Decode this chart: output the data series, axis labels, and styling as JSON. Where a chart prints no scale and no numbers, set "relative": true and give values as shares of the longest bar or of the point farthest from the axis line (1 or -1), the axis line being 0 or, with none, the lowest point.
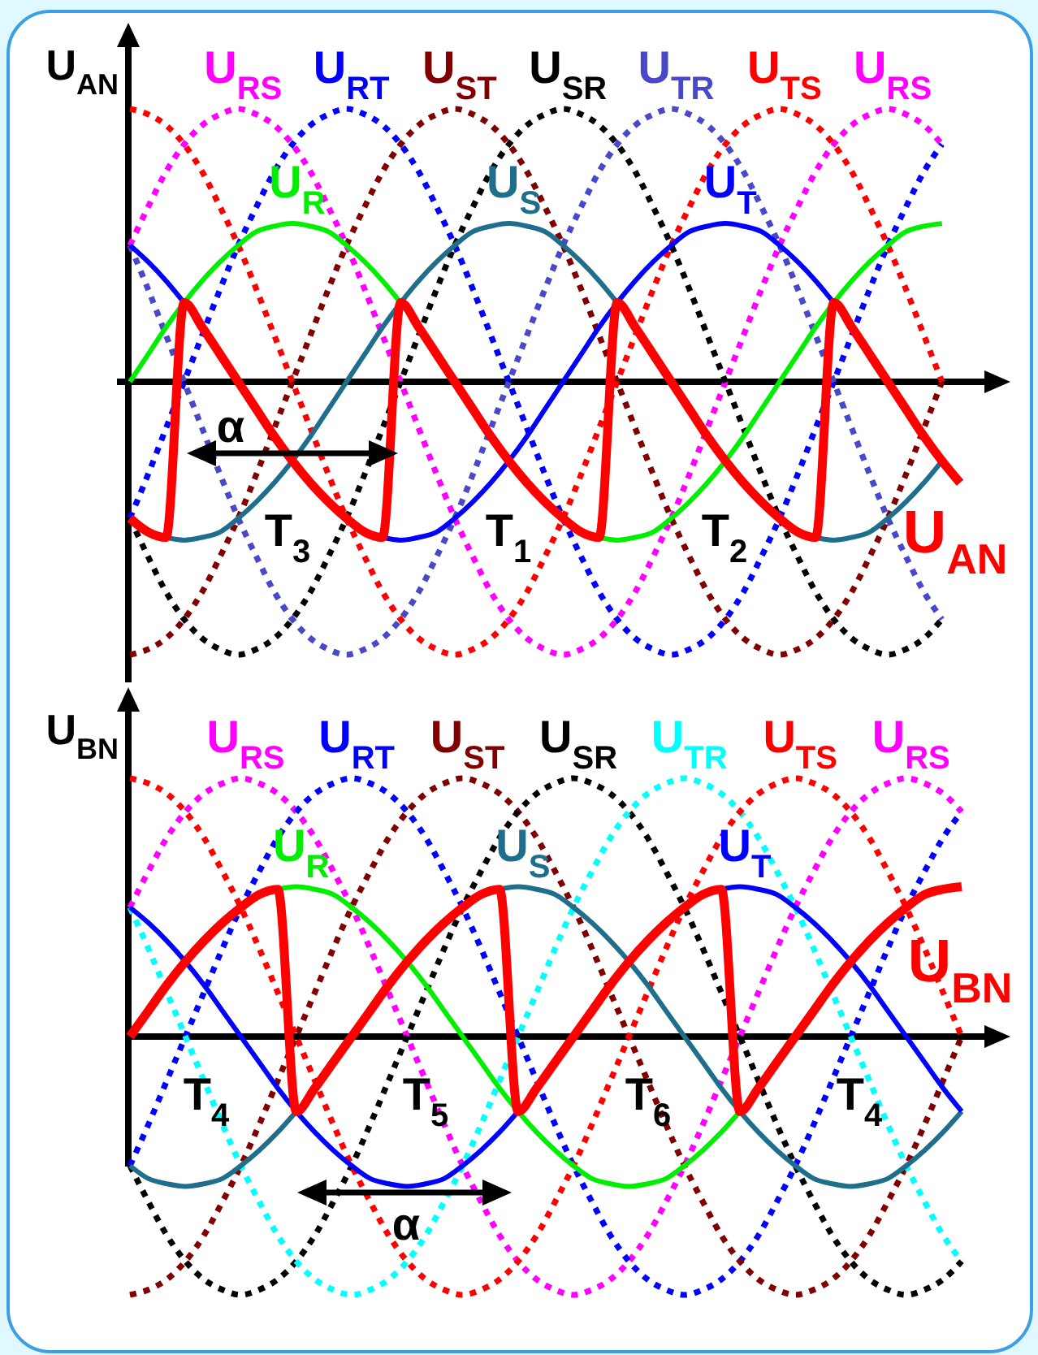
{
  "chart_data": [
    {
      "type": "line",
      "relative": true,
      "ylabel": "U$_{AN}$",
      "categories": [
        null,
        null,
        null,
        null,
        null,
        null,
        null,
        null,
        null,
        null,
        null,
        null,
        null,
        null,
        null,
        null,
        null,
        null,
        null,
        null,
        null,
        null,
        null,
        null,
        null,
        null,
        null,
        null,
        null,
        null,
        null,
        null,
        null,
        null,
        null,
        null,
        null,
        null,
        null,
        null,
        null,
        null,
        null,
        null,
        null,
        null,
        null
      ],
      "series": [
        {
          "name": "U$_{RS}$",
          "color": "#ff00ff",
          "line_style": "dotted",
          "values": [
            0.5,
            0.64,
            0.77,
            0.87,
            0.94,
            0.98,
            1,
            0.98,
            0.94,
            0.87,
            0.77,
            0.64,
            0.5,
            0.34,
            0.17,
            0,
            -0.17,
            -0.34,
            -0.5,
            -0.64,
            -0.77,
            -0.87,
            -0.94,
            -0.98,
            -1,
            -0.98,
            -0.94,
            -0.87,
            -0.77,
            -0.64,
            -0.5,
            -0.34,
            -0.17,
            0,
            0.17,
            0.34,
            0.5,
            0.64,
            0.77,
            0.87,
            0.94,
            0.98,
            1,
            0.98,
            0.94,
            0.87,
            null
          ]
        },
        {
          "name": "U$_{RT}$",
          "color": "#0000ff",
          "line_style": "dotted",
          "values": [
            -0.5,
            -0.34,
            -0.17,
            0,
            0.17,
            0.34,
            0.5,
            0.64,
            0.77,
            0.87,
            0.94,
            0.98,
            1,
            0.98,
            0.94,
            0.87,
            0.77,
            0.64,
            0.5,
            0.34,
            0.17,
            0,
            -0.17,
            -0.34,
            -0.5,
            -0.64,
            -0.77,
            -0.87,
            -0.94,
            -0.98,
            -1,
            -0.98,
            -0.94,
            -0.87,
            -0.77,
            -0.64,
            -0.5,
            -0.34,
            -0.17,
            0,
            0.17,
            0.34,
            0.5,
            0.64,
            0.77,
            0.87,
            null
          ]
        },
        {
          "name": "U$_{ST}$",
          "color": "#800000",
          "line_style": "dotted",
          "values": [
            -1,
            -0.98,
            -0.94,
            -0.87,
            -0.77,
            -0.64,
            -0.5,
            -0.34,
            -0.17,
            0,
            0.17,
            0.34,
            0.5,
            0.64,
            0.77,
            0.87,
            0.94,
            0.98,
            1,
            0.98,
            0.94,
            0.87,
            0.77,
            0.64,
            0.5,
            0.34,
            0.17,
            0,
            -0.17,
            -0.34,
            -0.5,
            -0.64,
            -0.77,
            -0.87,
            -0.94,
            -0.98,
            -1,
            -0.98,
            -0.94,
            -0.87,
            -0.77,
            -0.64,
            -0.5,
            -0.34,
            -0.17,
            0,
            null
          ]
        },
        {
          "name": "U$_{SR}$",
          "color": "#000000",
          "line_style": "dotted",
          "values": [
            -0.5,
            -0.64,
            -0.77,
            -0.87,
            -0.94,
            -0.98,
            -1,
            -0.98,
            -0.94,
            -0.87,
            -0.77,
            -0.64,
            -0.5,
            -0.34,
            -0.17,
            0,
            0.17,
            0.34,
            0.5,
            0.64,
            0.77,
            0.87,
            0.94,
            0.98,
            1,
            0.98,
            0.94,
            0.87,
            0.77,
            0.64,
            0.5,
            0.34,
            0.17,
            0,
            -0.17,
            -0.34,
            -0.5,
            -0.64,
            -0.77,
            -0.87,
            -0.94,
            -0.98,
            -1,
            -0.98,
            -0.94,
            -0.87,
            null
          ]
        },
        {
          "name": "U$_{TR}$",
          "color": "#4848c8",
          "line_style": "dotted",
          "values": [
            0.5,
            0.34,
            0.17,
            0,
            -0.17,
            -0.34,
            -0.5,
            -0.64,
            -0.77,
            -0.87,
            -0.94,
            -0.98,
            -1,
            -0.98,
            -0.94,
            -0.87,
            -0.77,
            -0.64,
            -0.5,
            -0.34,
            -0.17,
            0,
            0.17,
            0.34,
            0.5,
            0.64,
            0.77,
            0.87,
            0.94,
            0.98,
            1,
            0.98,
            0.94,
            0.87,
            0.77,
            0.64,
            0.5,
            0.34,
            0.17,
            0,
            -0.17,
            -0.34,
            -0.5,
            -0.64,
            -0.77,
            -0.87,
            null
          ]
        },
        {
          "name": "U$_{TS}$",
          "color": "#ff0000",
          "line_style": "dotted",
          "values": [
            1,
            0.98,
            0.94,
            0.87,
            0.77,
            0.64,
            0.5,
            0.34,
            0.17,
            0,
            -0.17,
            -0.34,
            -0.5,
            -0.64,
            -0.77,
            -0.87,
            -0.94,
            -0.98,
            -1,
            -0.98,
            -0.94,
            -0.87,
            -0.77,
            -0.64,
            -0.5,
            -0.34,
            -0.17,
            0,
            0.17,
            0.34,
            0.5,
            0.64,
            0.77,
            0.87,
            0.94,
            0.98,
            1,
            0.98,
            0.94,
            0.87,
            0.77,
            0.64,
            0.5,
            0.34,
            0.17,
            0,
            null
          ]
        },
        {
          "name": "U$_{R}$",
          "color": "#00ee00",
          "line_style": "solid",
          "values": [
            0,
            0.1,
            0.2,
            0.29,
            0.37,
            0.44,
            0.5,
            0.55,
            0.57,
            0.58,
            0.57,
            0.55,
            0.5,
            0.44,
            0.37,
            0.29,
            null,
            null,
            null,
            null,
            null,
            null,
            null,
            null,
            null,
            null,
            -0.57,
            -0.58,
            -0.57,
            -0.55,
            -0.5,
            -0.44,
            -0.37,
            -0.29,
            -0.2,
            -0.1,
            0,
            0.1,
            0.2,
            0.29,
            0.37,
            0.44,
            0.5,
            0.55,
            0.57,
            0.58,
            null
          ]
        },
        {
          "name": "U$_{S}$",
          "color": "#1f6e8c",
          "line_style": "solid",
          "values": [
            null,
            null,
            -0.57,
            -0.58,
            -0.57,
            -0.55,
            -0.5,
            -0.44,
            -0.37,
            -0.29,
            -0.2,
            -0.1,
            0,
            0.1,
            0.2,
            0.29,
            0.37,
            0.44,
            0.5,
            0.55,
            0.57,
            0.58,
            0.57,
            0.55,
            0.5,
            0.44,
            0.37,
            0.29,
            null,
            null,
            null,
            null,
            null,
            null,
            null,
            null,
            null,
            null,
            -0.57,
            -0.58,
            -0.57,
            -0.55,
            -0.5,
            -0.44,
            -0.37,
            -0.29,
            null
          ]
        },
        {
          "name": "U$_{T}$",
          "color": "#0000ff",
          "line_style": "solid",
          "values": [
            0.5,
            0.44,
            0.37,
            0.29,
            null,
            null,
            null,
            null,
            null,
            null,
            null,
            null,
            null,
            null,
            -0.57,
            -0.58,
            -0.57,
            -0.55,
            -0.5,
            -0.44,
            -0.37,
            -0.29,
            -0.2,
            -0.1,
            0,
            0.1,
            0.2,
            0.29,
            0.37,
            0.44,
            0.5,
            0.55,
            0.57,
            0.58,
            0.57,
            0.55,
            0.5,
            0.44,
            0.37,
            0.29,
            null,
            null,
            null,
            null,
            null,
            null,
            null
          ]
        },
        {
          "name": "U$_{AN}$",
          "color": "#ff0000",
          "line_style": "solid",
          "values": [
            -0.5,
            -0.55,
            -0.57,
            0.29,
            0.2,
            0.1,
            0,
            -0.1,
            -0.2,
            -0.29,
            -0.37,
            -0.44,
            -0.5,
            -0.55,
            -0.57,
            0.29,
            0.2,
            0.1,
            0,
            -0.1,
            -0.2,
            -0.29,
            -0.37,
            -0.44,
            -0.5,
            -0.55,
            -0.57,
            0.29,
            0.2,
            0.1,
            0,
            -0.1,
            -0.2,
            -0.29,
            -0.37,
            -0.44,
            -0.5,
            -0.55,
            -0.57,
            0.29,
            0.2,
            0.1,
            0,
            -0.1,
            -0.2,
            -0.29,
            -0.37
          ]
        }
      ],
      "annotations": [
        "α",
        "T$_{3}$",
        "T$_{1}$",
        "T$_{2}$"
      ]
    },
    {
      "type": "line",
      "relative": true,
      "ylabel": "U$_{BN}$",
      "categories": [
        null,
        null,
        null,
        null,
        null,
        null,
        null,
        null,
        null,
        null,
        null,
        null,
        null,
        null,
        null,
        null,
        null,
        null,
        null,
        null,
        null,
        null,
        null,
        null,
        null,
        null,
        null,
        null,
        null,
        null,
        null,
        null,
        null,
        null,
        null,
        null,
        null,
        null,
        null,
        null,
        null,
        null,
        null,
        null,
        null,
        null
      ],
      "series": [
        {
          "name": "U$_{RS}$",
          "color": "#ff00ff",
          "line_style": "dotted",
          "values": [
            0.5,
            0.64,
            0.77,
            0.87,
            0.94,
            0.98,
            1,
            0.98,
            0.94,
            0.87,
            0.77,
            0.64,
            0.5,
            0.34,
            0.17,
            0,
            -0.17,
            -0.34,
            -0.5,
            -0.64,
            -0.77,
            -0.87,
            -0.94,
            -0.98,
            -1,
            -0.98,
            -0.94,
            -0.87,
            -0.77,
            -0.64,
            -0.5,
            -0.34,
            -0.17,
            0,
            0.17,
            0.34,
            0.5,
            0.64,
            0.77,
            0.87,
            0.94,
            0.98,
            1,
            0.98,
            0.94,
            0.87
          ]
        },
        {
          "name": "U$_{RT}$",
          "color": "#0000ff",
          "line_style": "dotted",
          "values": [
            -0.5,
            -0.34,
            -0.17,
            0,
            0.17,
            0.34,
            0.5,
            0.64,
            0.77,
            0.87,
            0.94,
            0.98,
            1,
            0.98,
            0.94,
            0.87,
            0.77,
            0.64,
            0.5,
            0.34,
            0.17,
            0,
            -0.17,
            -0.34,
            -0.5,
            -0.64,
            -0.77,
            -0.87,
            -0.94,
            -0.98,
            -1,
            -0.98,
            -0.94,
            -0.87,
            -0.77,
            -0.64,
            -0.5,
            -0.34,
            -0.17,
            0,
            0.17,
            0.34,
            0.5,
            0.64,
            0.77,
            0.87
          ]
        },
        {
          "name": "U$_{ST}$",
          "color": "#800000",
          "line_style": "dotted",
          "values": [
            -1,
            -0.98,
            -0.94,
            -0.87,
            -0.77,
            -0.64,
            -0.5,
            -0.34,
            -0.17,
            0,
            0.17,
            0.34,
            0.5,
            0.64,
            0.77,
            0.87,
            0.94,
            0.98,
            1,
            0.98,
            0.94,
            0.87,
            0.77,
            0.64,
            0.5,
            0.34,
            0.17,
            0,
            -0.17,
            -0.34,
            -0.5,
            -0.64,
            -0.77,
            -0.87,
            -0.94,
            -0.98,
            -1,
            -0.98,
            -0.94,
            -0.87,
            -0.77,
            -0.64,
            -0.5,
            -0.34,
            -0.17,
            0
          ]
        },
        {
          "name": "U$_{SR}$",
          "color": "#000000",
          "line_style": "dotted",
          "values": [
            -0.5,
            -0.64,
            -0.77,
            -0.87,
            -0.94,
            -0.98,
            -1,
            -0.98,
            -0.94,
            -0.87,
            -0.77,
            -0.64,
            -0.5,
            -0.34,
            -0.17,
            0,
            0.17,
            0.34,
            0.5,
            0.64,
            0.77,
            0.87,
            0.94,
            0.98,
            1,
            0.98,
            0.94,
            0.87,
            0.77,
            0.64,
            0.5,
            0.34,
            0.17,
            0,
            -0.17,
            -0.34,
            -0.5,
            -0.64,
            -0.77,
            -0.87,
            -0.94,
            -0.98,
            -1,
            -0.98,
            -0.94,
            -0.87
          ]
        },
        {
          "name": "U$_{TR}$",
          "color": "#00ffff",
          "line_style": "dotted",
          "values": [
            0.5,
            0.34,
            0.17,
            0,
            -0.17,
            -0.34,
            -0.5,
            -0.64,
            -0.77,
            -0.87,
            -0.94,
            -0.98,
            -1,
            -0.98,
            -0.94,
            -0.87,
            -0.77,
            -0.64,
            -0.5,
            -0.34,
            -0.17,
            0,
            0.17,
            0.34,
            0.5,
            0.64,
            0.77,
            0.87,
            0.94,
            0.98,
            1,
            0.98,
            0.94,
            0.87,
            0.77,
            0.64,
            0.5,
            0.34,
            0.17,
            0,
            -0.17,
            -0.34,
            -0.5,
            -0.64,
            -0.77,
            -0.87
          ]
        },
        {
          "name": "U$_{TS}$",
          "color": "#ff0000",
          "line_style": "dotted",
          "values": [
            1,
            0.98,
            0.94,
            0.87,
            0.77,
            0.64,
            0.5,
            0.34,
            0.17,
            0,
            -0.17,
            -0.34,
            -0.5,
            -0.64,
            -0.77,
            -0.87,
            -0.94,
            -0.98,
            -1,
            -0.98,
            -0.94,
            -0.87,
            -0.77,
            -0.64,
            -0.5,
            -0.34,
            -0.17,
            0,
            0.17,
            0.34,
            0.5,
            0.64,
            0.77,
            0.87,
            0.94,
            0.98,
            1,
            0.98,
            0.94,
            0.87,
            0.77,
            0.64,
            0.5,
            0.34,
            0.17,
            0
          ]
        },
        {
          "name": "U$_{R}$",
          "color": "#00ee00",
          "line_style": "solid",
          "values": [
            null,
            null,
            null,
            null,
            null,
            null,
            null,
            null,
            0.57,
            0.58,
            0.57,
            0.55,
            0.5,
            0.44,
            0.37,
            0.29,
            0.2,
            0.1,
            0,
            -0.1,
            -0.2,
            -0.29,
            -0.37,
            -0.44,
            -0.5,
            -0.55,
            -0.57,
            -0.58,
            -0.57,
            -0.55,
            -0.5,
            -0.44,
            -0.37,
            -0.29,
            null,
            null,
            null,
            null,
            null,
            null,
            null,
            null,
            null,
            null,
            null,
            null
          ]
        },
        {
          "name": "U$_{S}$",
          "color": "#1f6e8c",
          "line_style": "solid",
          "values": [
            -0.5,
            -0.55,
            -0.57,
            -0.58,
            -0.57,
            -0.55,
            -0.5,
            -0.44,
            -0.37,
            -0.29,
            null,
            null,
            null,
            null,
            null,
            null,
            null,
            null,
            null,
            null,
            0.57,
            0.58,
            0.57,
            0.55,
            0.5,
            0.44,
            0.37,
            0.29,
            0.2,
            0.1,
            0,
            -0.1,
            -0.2,
            -0.29,
            -0.37,
            -0.44,
            -0.5,
            -0.55,
            -0.57,
            -0.58,
            -0.57,
            -0.55,
            -0.5,
            -0.44,
            -0.37,
            -0.29
          ]
        },
        {
          "name": "U$_{T}$",
          "color": "#0000ff",
          "line_style": "solid",
          "values": [
            0.5,
            0.44,
            0.37,
            0.29,
            0.2,
            0.1,
            0,
            -0.1,
            -0.2,
            -0.29,
            -0.37,
            -0.44,
            -0.5,
            -0.55,
            -0.57,
            -0.58,
            -0.57,
            -0.55,
            -0.5,
            -0.44,
            -0.37,
            -0.29,
            null,
            null,
            null,
            null,
            null,
            null,
            null,
            null,
            null,
            null,
            0.57,
            0.58,
            0.57,
            0.55,
            0.5,
            0.44,
            0.37,
            0.29,
            0.2,
            0.1,
            0,
            -0.1,
            -0.2,
            -0.29
          ]
        },
        {
          "name": "U$_{BN}$",
          "color": "#ff0000",
          "line_style": "solid",
          "values": [
            0,
            0.1,
            0.2,
            0.29,
            0.37,
            0.44,
            0.5,
            0.55,
            0.57,
            -0.29,
            -0.2,
            -0.1,
            0,
            0.1,
            0.2,
            0.29,
            0.37,
            0.44,
            0.5,
            0.55,
            0.57,
            -0.29,
            -0.2,
            -0.1,
            0,
            0.1,
            0.2,
            0.29,
            0.37,
            0.44,
            0.5,
            0.55,
            0.57,
            -0.29,
            -0.2,
            -0.1,
            0,
            0.1,
            0.2,
            0.29,
            0.37,
            0.44,
            0.5,
            0.55,
            0.57,
            0.58
          ]
        }
      ],
      "annotations": [
        "T$_{4}$",
        "T$_{5}$",
        "T$_{6}$",
        "T$_{4}$",
        "α"
      ]
    }
  ]
}
